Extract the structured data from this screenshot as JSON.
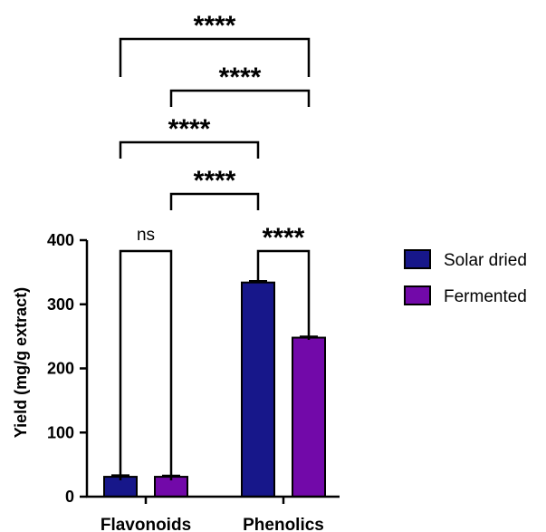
{
  "chart_data": {
    "type": "bar",
    "categories": [
      "Flavonoids",
      "Phenolics"
    ],
    "series": [
      {
        "name": "Solar dried",
        "color": "#17178a",
        "values": [
          31,
          334
        ],
        "error": [
          2,
          2
        ]
      },
      {
        "name": "Fermented",
        "color": "#7209a9",
        "values": [
          31,
          248
        ],
        "error": [
          1.5,
          1.5
        ]
      }
    ],
    "ylabel": "Yield (mg/g extract)",
    "ylim": [
      0,
      400
    ],
    "yticks": [
      "0",
      "100",
      "200",
      "300",
      "400"
    ],
    "grid": false,
    "legend_position": "right",
    "significance": [
      {
        "from": "Flavonoids / Solar dried",
        "to": "Flavonoids / Fermented",
        "label": "ns"
      },
      {
        "from": "Phenolics / Solar dried",
        "to": "Phenolics / Fermented",
        "label": "****"
      },
      {
        "from": "Flavonoids / Fermented",
        "to": "Phenolics / Solar dried",
        "label": "****"
      },
      {
        "from": "Flavonoids / Solar dried",
        "to": "Phenolics / Solar dried",
        "label": "****"
      },
      {
        "from": "Flavonoids / Fermented",
        "to": "Phenolics / Fermented",
        "label": "****"
      },
      {
        "from": "Flavonoids / Solar dried",
        "to": "Phenolics / Fermented",
        "label": "****"
      }
    ]
  }
}
